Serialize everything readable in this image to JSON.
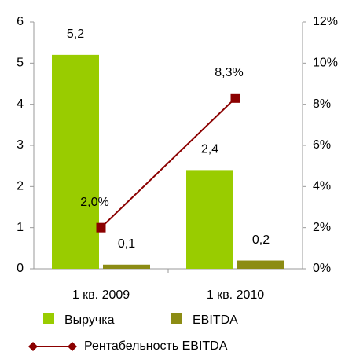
{
  "chart_data": {
    "type": "bar",
    "categories": [
      "1 кв. 2009",
      "1 кв. 2010"
    ],
    "series": [
      {
        "name": "Выручка",
        "type": "bar",
        "color": "#99cc00",
        "values": [
          5.2,
          2.4
        ],
        "value_labels": [
          "5,2",
          "2,4"
        ]
      },
      {
        "name": "EBITDA",
        "type": "bar",
        "color": "#8c8c14",
        "values": [
          0.1,
          0.2
        ],
        "value_labels": [
          "0,1",
          "0,2"
        ]
      },
      {
        "name": "Рентабельность EBITDA",
        "type": "line",
        "axis": "y2",
        "color": "#8b0000",
        "values": [
          2.0,
          8.3
        ],
        "value_labels": [
          "2,0%",
          "8,3%"
        ]
      }
    ],
    "ylim": [
      0,
      6
    ],
    "yticks": [
      0,
      1,
      2,
      3,
      4,
      5,
      6
    ],
    "y2lim": [
      0,
      12
    ],
    "y2ticks": [
      {
        "value": 0,
        "label": "0%"
      },
      {
        "value": 2,
        "label": "2%"
      },
      {
        "value": 4,
        "label": "4%"
      },
      {
        "value": 6,
        "label": "6%"
      },
      {
        "value": 8,
        "label": "8%"
      },
      {
        "value": 10,
        "label": "10%"
      },
      {
        "value": 12,
        "label": "12%"
      }
    ],
    "grid": false,
    "legend": "bottom"
  }
}
